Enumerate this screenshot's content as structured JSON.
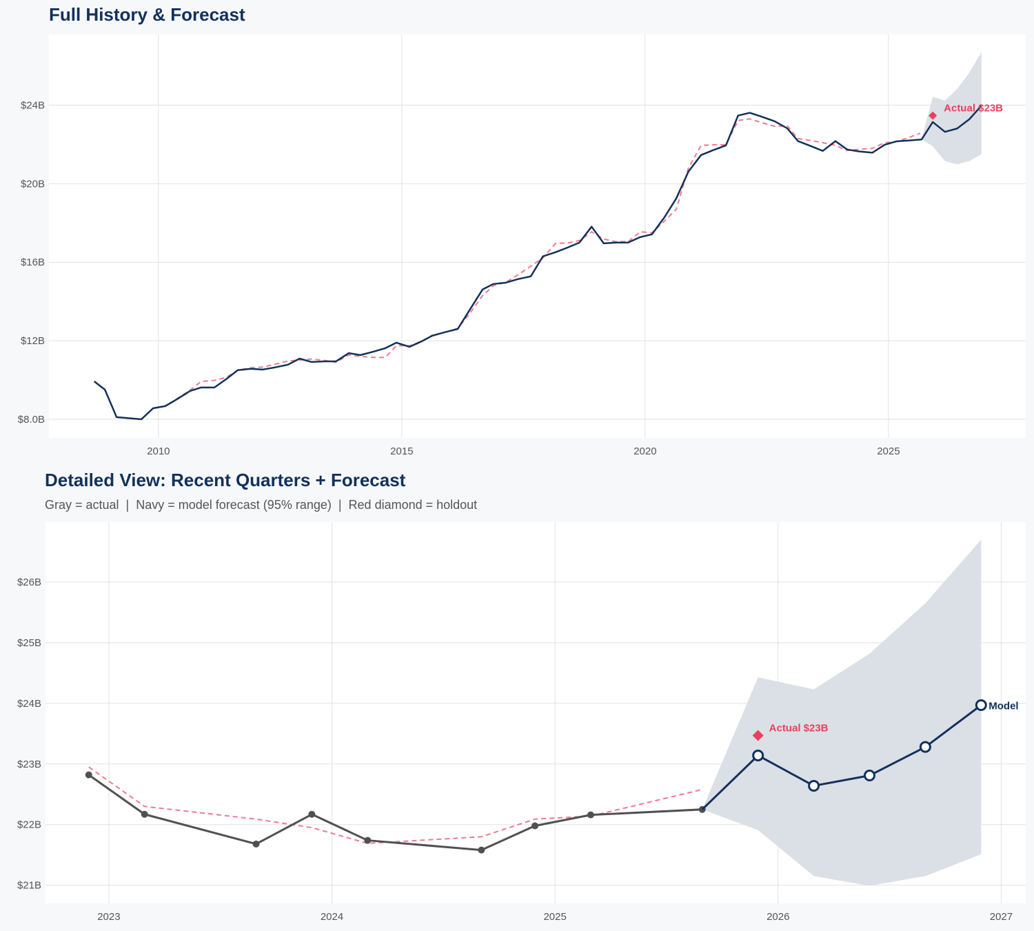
{
  "colors": {
    "navy": "#12315b",
    "actual_gray": "#505050",
    "fitted_red": "#f07a8e",
    "holdout_red": "#e8405e",
    "band": "#d9dee5",
    "grid": "#e2e2e2"
  },
  "chart_data": [
    {
      "type": "line",
      "title": "Full History & Forecast",
      "xlim": [
        2007.75,
        2027.82
      ],
      "ylim": [
        7.05,
        27.6
      ],
      "x_ticks": [
        2010,
        2015,
        2020,
        2025
      ],
      "x_tick_labels": [
        "2010",
        "2015",
        "2020",
        "2025"
      ],
      "y_ticks": [
        8,
        12,
        16,
        20,
        24
      ],
      "y_tick_labels": [
        "$8.0B",
        "$12B",
        "$16B",
        "$20B",
        "$24B"
      ],
      "grid": true,
      "series": [
        {
          "role": "history",
          "style": "navy solid",
          "x": [
            2008.68,
            2008.9,
            2009.14,
            2009.65,
            2009.89,
            2010.14,
            2010.4,
            2010.65,
            2010.88,
            2011.15,
            2011.39,
            2011.63,
            2011.9,
            2012.14,
            2012.39,
            2012.66,
            2012.9,
            2013.14,
            2013.41,
            2013.65,
            2013.91,
            2014.15,
            2014.41,
            2014.66,
            2014.89,
            2015.16,
            2015.41,
            2015.62,
            2015.88,
            2016.15,
            2016.4,
            2016.66,
            2016.88,
            2017.14,
            2017.39,
            2017.65,
            2017.9,
            2018.16,
            2018.41,
            2018.65,
            2018.9,
            2019.15,
            2019.39,
            2019.65,
            2019.9,
            2020.14,
            2020.4,
            2020.64,
            2020.89,
            2021.15,
            2021.4,
            2021.66,
            2021.91,
            2022.15,
            2022.41,
            2022.66,
            2022.92,
            2023.14,
            2023.4,
            2023.65,
            2023.91,
            2024.15,
            2024.4,
            2024.67,
            2024.92,
            2025.17,
            2025.42,
            2025.68,
            2025.91,
            2026.16,
            2026.41,
            2026.66,
            2026.91
          ],
          "y": [
            9.93,
            9.51,
            8.11,
            8.0,
            8.56,
            8.67,
            9.05,
            9.44,
            9.62,
            9.62,
            10.04,
            10.5,
            10.57,
            10.53,
            10.64,
            10.78,
            11.09,
            10.92,
            10.95,
            10.95,
            11.37,
            11.27,
            11.44,
            11.62,
            11.9,
            11.69,
            11.97,
            12.25,
            12.43,
            12.6,
            13.59,
            14.61,
            14.89,
            14.96,
            15.14,
            15.28,
            16.3,
            16.51,
            16.75,
            17.0,
            17.81,
            16.96,
            17.0,
            17.0,
            17.28,
            17.42,
            18.3,
            19.25,
            20.62,
            21.46,
            21.71,
            21.95,
            23.47,
            23.61,
            23.4,
            23.18,
            22.82,
            22.17,
            21.92,
            21.67,
            22.17,
            21.74,
            21.64,
            21.58,
            21.98,
            22.16,
            22.2,
            22.25,
            23.14,
            22.64,
            22.81,
            23.28,
            23.97
          ]
        },
        {
          "role": "fitted",
          "style": "red dashed",
          "x": [
            2009.89,
            2010.14,
            2010.4,
            2010.65,
            2010.88,
            2011.15,
            2011.39,
            2011.63,
            2011.9,
            2012.14,
            2012.39,
            2012.66,
            2012.9,
            2013.14,
            2013.41,
            2013.65,
            2013.91,
            2014.15,
            2014.41,
            2014.66,
            2014.89,
            2015.16,
            2015.41,
            2015.62,
            2015.88,
            2016.15,
            2016.4,
            2016.66,
            2016.88,
            2017.14,
            2017.39,
            2017.65,
            2017.9,
            2018.16,
            2018.41,
            2018.65,
            2018.9,
            2019.15,
            2019.39,
            2019.65,
            2019.9,
            2020.14,
            2020.4,
            2020.64,
            2020.89,
            2021.15,
            2021.4,
            2021.66,
            2021.91,
            2022.15,
            2022.41,
            2022.66,
            2022.92,
            2023.14,
            2023.4,
            2023.65,
            2023.91,
            2024.15,
            2024.4,
            2024.67,
            2024.92,
            2025.17,
            2025.42,
            2025.65
          ],
          "y": [
            8.56,
            8.67,
            9.08,
            9.48,
            9.93,
            9.98,
            10.13,
            10.5,
            10.62,
            10.66,
            10.8,
            10.97,
            11.02,
            11.07,
            11.0,
            10.9,
            11.28,
            11.2,
            11.15,
            11.15,
            11.75,
            11.74,
            11.98,
            12.27,
            12.42,
            12.63,
            13.4,
            14.3,
            14.8,
            14.98,
            15.36,
            15.8,
            16.22,
            16.96,
            16.98,
            17.1,
            17.55,
            17.18,
            17.05,
            17.05,
            17.55,
            17.5,
            18.1,
            18.7,
            20.8,
            21.95,
            21.98,
            21.98,
            23.22,
            23.3,
            23.1,
            22.92,
            22.95,
            22.3,
            22.2,
            22.09,
            21.95,
            21.69,
            21.75,
            21.8,
            22.09,
            22.14,
            22.35,
            22.57
          ]
        }
      ],
      "band": {
        "label": "95% range",
        "x": [
          2025.68,
          2025.91,
          2026.16,
          2026.41,
          2026.66,
          2026.91
        ],
        "upper": [
          22.25,
          24.43,
          24.23,
          24.82,
          25.65,
          26.7
        ],
        "lower": [
          22.25,
          21.91,
          21.15,
          20.99,
          21.15,
          21.51
        ]
      },
      "holdout": {
        "x": 2025.91,
        "y": 23.47,
        "label": "Actual $23B"
      }
    },
    {
      "type": "line",
      "title": "Detailed View: Recent Quarters + Forecast",
      "subtitle": "Gray = actual  |  Navy = model forecast (95% range)  |  Red diamond = holdout",
      "xlim": [
        2022.716,
        2027.11
      ],
      "ylim": [
        20.7,
        26.99
      ],
      "x_ticks": [
        2023,
        2024,
        2025,
        2026,
        2027
      ],
      "x_tick_labels": [
        "2023",
        "2024",
        "2025",
        "2026",
        "2027"
      ],
      "y_ticks": [
        21,
        22,
        23,
        24,
        25,
        26
      ],
      "y_tick_labels": [
        "$21B",
        "$22B",
        "$23B",
        "$24B",
        "$25B",
        "$26B"
      ],
      "grid": true,
      "series": [
        {
          "role": "actual",
          "style": "gray solid with dots",
          "x": [
            2022.91,
            2023.16,
            2023.66,
            2023.91,
            2024.16,
            2024.67,
            2024.91,
            2025.16,
            2025.66
          ],
          "y": [
            22.82,
            22.17,
            21.68,
            22.17,
            21.74,
            21.58,
            21.98,
            22.16,
            22.25
          ]
        },
        {
          "role": "fitted",
          "style": "red dashed",
          "x": [
            2022.91,
            2023.16,
            2023.66,
            2023.91,
            2024.16,
            2024.67,
            2024.91,
            2025.16,
            2025.65
          ],
          "y": [
            22.95,
            22.3,
            22.09,
            21.95,
            21.69,
            21.8,
            22.09,
            22.14,
            22.57
          ]
        },
        {
          "role": "forecast",
          "name": "Model",
          "style": "navy solid with open circles",
          "x": [
            2025.66,
            2025.91,
            2026.16,
            2026.41,
            2026.66,
            2026.91
          ],
          "y": [
            22.25,
            23.14,
            22.64,
            22.81,
            23.28,
            23.97
          ]
        }
      ],
      "band": {
        "label": "95% range",
        "x": [
          2025.66,
          2025.91,
          2026.16,
          2026.41,
          2026.66,
          2026.91
        ],
        "upper": [
          22.25,
          24.43,
          24.23,
          24.82,
          25.65,
          26.7
        ],
        "lower": [
          22.25,
          21.91,
          21.15,
          20.99,
          21.15,
          21.51
        ]
      },
      "holdout": {
        "x": 2025.91,
        "y": 23.47,
        "label": "Actual $23B"
      },
      "end_label": "Model"
    }
  ]
}
